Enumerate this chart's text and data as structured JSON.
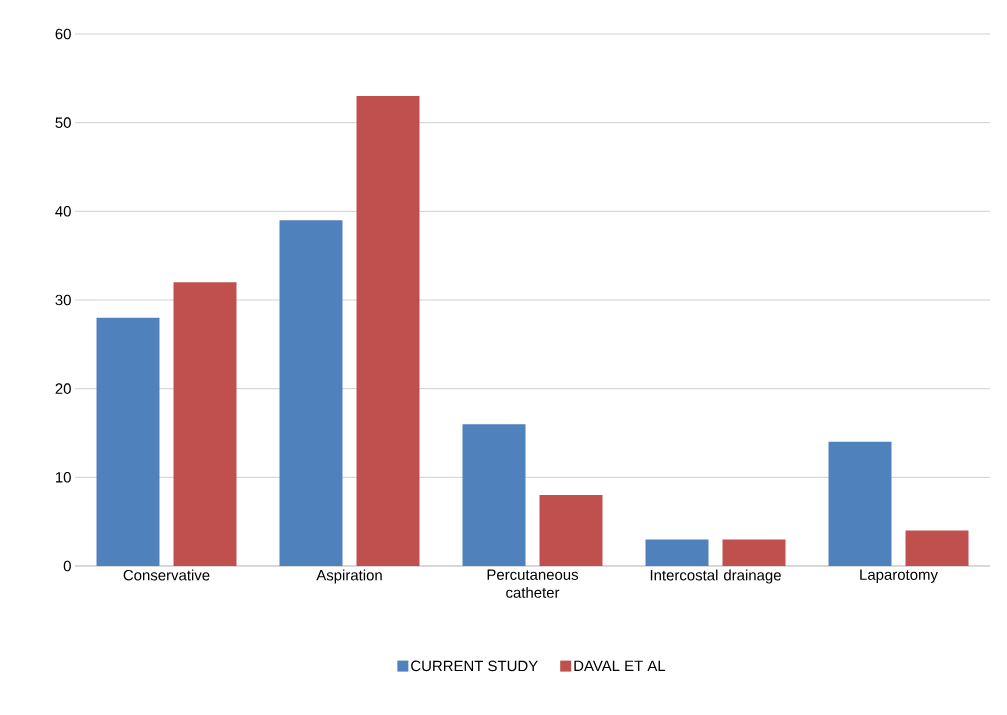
{
  "chart_data": {
    "type": "bar",
    "categories": [
      "Conservative",
      "Aspiration",
      "Percutaneous catheter",
      "Intercostal drainage",
      "Laparotomy"
    ],
    "series": [
      {
        "name": "CURRENT STUDY",
        "color": "#4f81bd",
        "values": [
          28,
          39,
          16,
          3,
          14
        ]
      },
      {
        "name": "DAVAL ET AL",
        "color": "#c0504d",
        "values": [
          32,
          53,
          8,
          3,
          4
        ]
      }
    ],
    "ylim": [
      0,
      60
    ],
    "yticks": [
      0,
      10,
      20,
      30,
      40,
      50,
      60
    ],
    "grid": "y",
    "legend": "bottom"
  }
}
